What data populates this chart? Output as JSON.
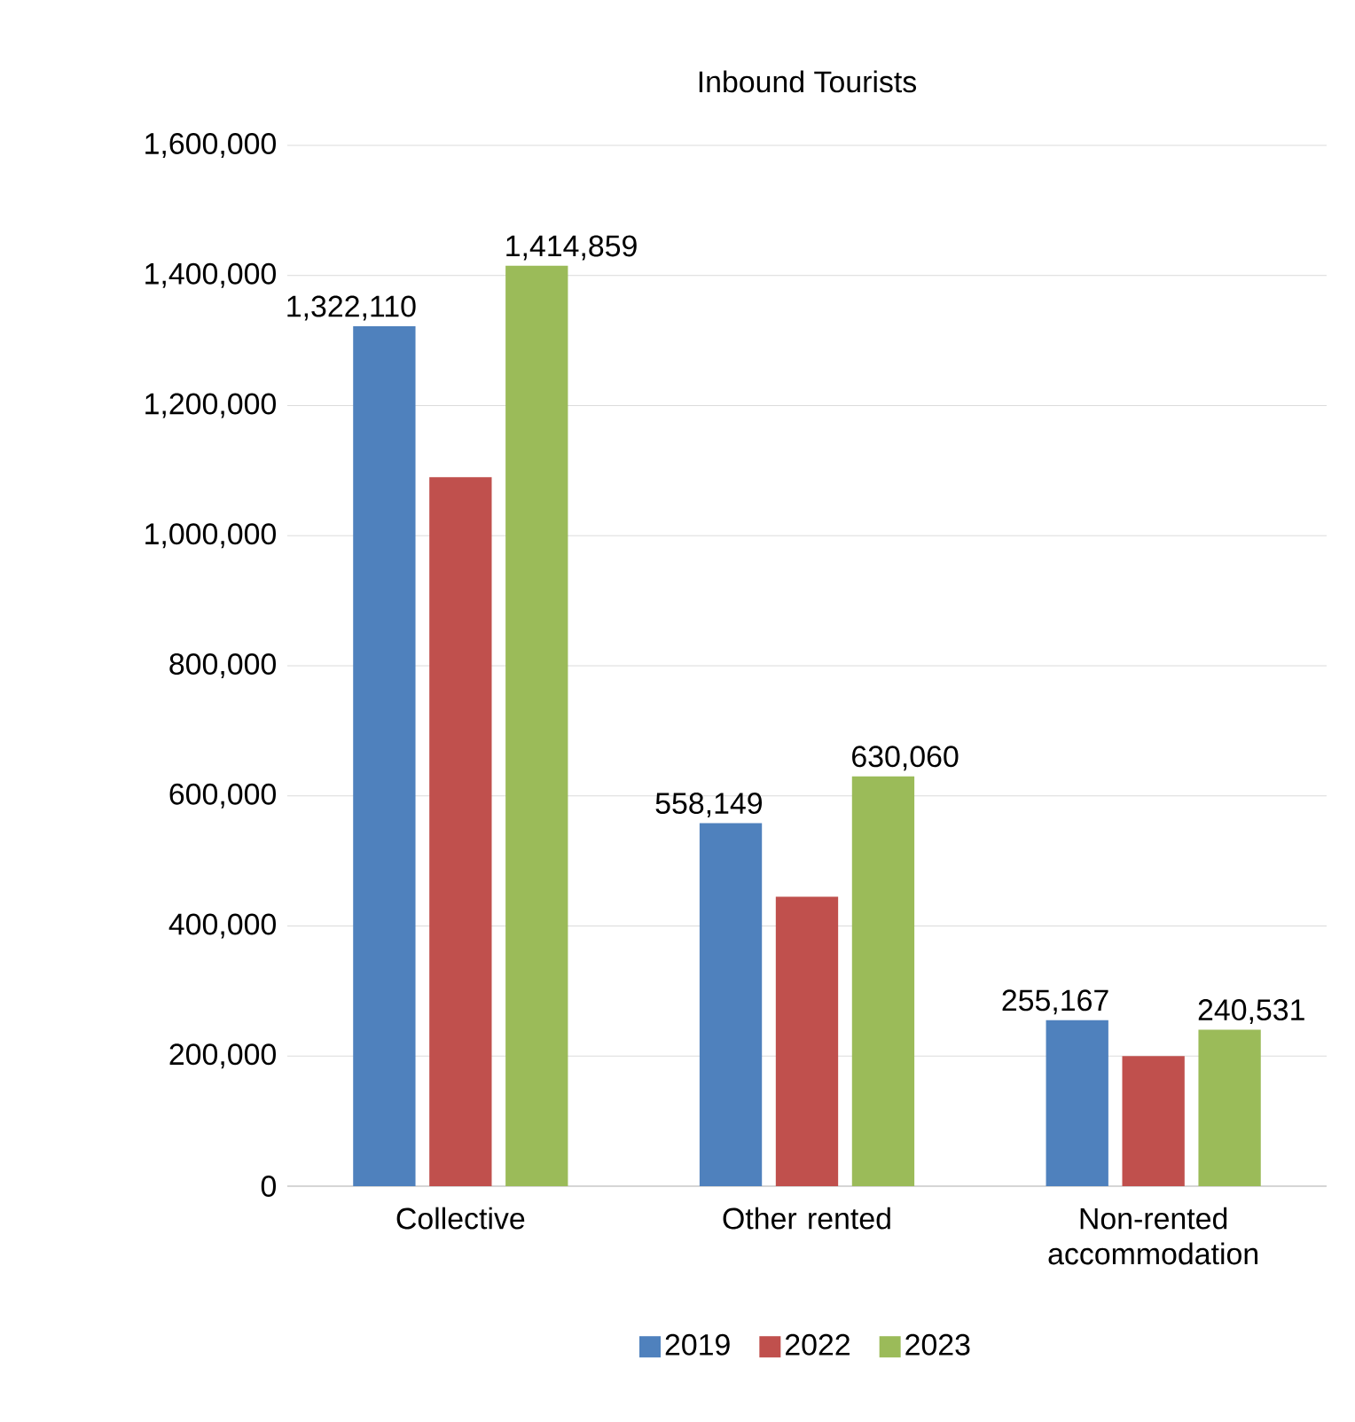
{
  "chart_data": {
    "type": "bar",
    "title": "Inbound Tourists",
    "categories": [
      "Collective",
      "Other rented",
      "Non-rented accommodation"
    ],
    "series": [
      {
        "name": "2019",
        "color": "#4f81bd",
        "values": [
          1322110,
          558149,
          255167
        ],
        "value_labels": [
          "1,322,110",
          "558,149",
          "255,167"
        ]
      },
      {
        "name": "2022",
        "color": "#c0504d",
        "values": [
          1090000,
          445000,
          200000
        ]
      },
      {
        "name": "2023",
        "color": "#9bbb59",
        "values": [
          1414859,
          630060,
          240531
        ],
        "value_labels": [
          "1,414,859",
          "630,060",
          "240,531"
        ]
      }
    ],
    "ylim": [
      0,
      1600000
    ],
    "yticks": [
      0,
      {
        "value": 200000,
        "label": "200,000"
      },
      {
        "value": 400000,
        "label": "400,000"
      },
      {
        "value": 600000,
        "label": "600,000"
      },
      {
        "value": 800000,
        "label": "800,000"
      },
      {
        "value": 1000000,
        "label": "1,000,000"
      },
      {
        "value": 1200000,
        "label": "1,200,000"
      },
      {
        "value": 1400000,
        "label": "1,400,000"
      },
      {
        "value": 1600000,
        "label": "1,600,000"
      }
    ],
    "grid": "y",
    "legend": "bottom"
  }
}
